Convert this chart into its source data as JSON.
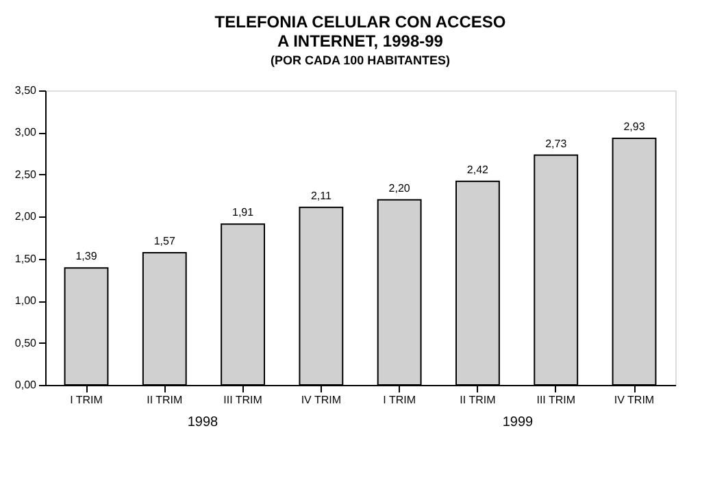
{
  "chart_data": {
    "type": "bar",
    "title": [
      "TELEFONIA CELULAR CON ACCESO",
      "A INTERNET, 1998-99"
    ],
    "subtitle": "(POR CADA 100 HABITANTES)",
    "categories": [
      "I TRIM",
      "II TRIM",
      "III TRIM",
      "IV TRIM",
      "I TRIM",
      "II TRIM",
      "III TRIM",
      "IV TRIM"
    ],
    "values": [
      1.39,
      1.57,
      1.91,
      2.11,
      2.2,
      2.42,
      2.73,
      2.93
    ],
    "value_labels": [
      "1,39",
      "1,57",
      "1,91",
      "2,11",
      "2,20",
      "2,42",
      "2,73",
      "2,93"
    ],
    "color": "#d0d0d0",
    "ylim": [
      0,
      3.5
    ],
    "yticks": [
      {
        "value": 0,
        "label": "0,00"
      },
      {
        "value": 0.5,
        "label": "0,50"
      },
      {
        "value": 1,
        "label": "1,00"
      },
      {
        "value": 1.5,
        "label": "1,50"
      },
      {
        "value": 2,
        "label": "2,00"
      },
      {
        "value": 2.5,
        "label": "2,50"
      },
      {
        "value": 3,
        "label": "3,00"
      },
      {
        "value": 3.5,
        "label": "3,50"
      }
    ],
    "annotations": [
      "1998",
      "1999"
    ],
    "grid": false
  }
}
